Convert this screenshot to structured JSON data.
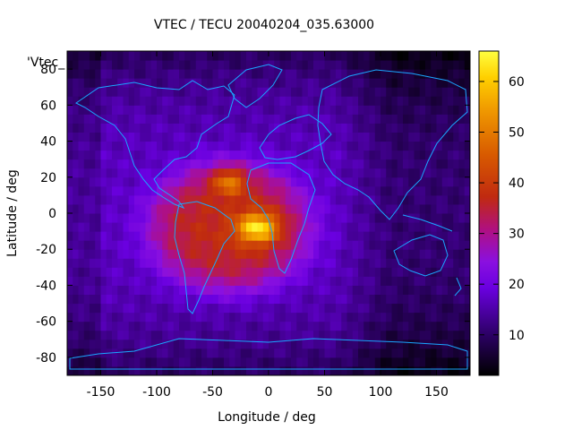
{
  "chart_data": {
    "type": "heatmap",
    "title": "VTEC / TECU 20040204_035.63000",
    "xlabel": "Longitude / deg",
    "ylabel": "Latitude / deg",
    "xlim": [
      -180,
      180
    ],
    "ylim": [
      -90,
      90
    ],
    "x_ticks": [
      -150,
      -100,
      -50,
      0,
      50,
      100,
      150
    ],
    "y_ticks": [
      -80,
      -60,
      -40,
      -20,
      0,
      20,
      40,
      60,
      80
    ],
    "colorbar": {
      "range": [
        2,
        66
      ],
      "ticks": [
        10,
        20,
        30,
        40,
        50,
        60
      ],
      "palette": "black-purple-blue-red-orange-yellow"
    },
    "legend_label": "'Vtec_",
    "overlay": "continent coastlines (cyan)",
    "features": [
      {
        "name": "main ionization crest",
        "lon_range": [
          -110,
          40
        ],
        "lat_range": [
          -45,
          30
        ],
        "typical_vtec": 35
      },
      {
        "name": "peak (south america / south atlantic)",
        "lon": -10,
        "lat": -8,
        "vtec": 64
      },
      {
        "name": "secondary peak (north atlantic)",
        "lon": -35,
        "lat": 18,
        "vtec": 55
      },
      {
        "name": "nightside background",
        "lon_range": [
          60,
          180
        ],
        "lat_range": [
          -90,
          90
        ],
        "typical_vtec": 10
      }
    ]
  }
}
